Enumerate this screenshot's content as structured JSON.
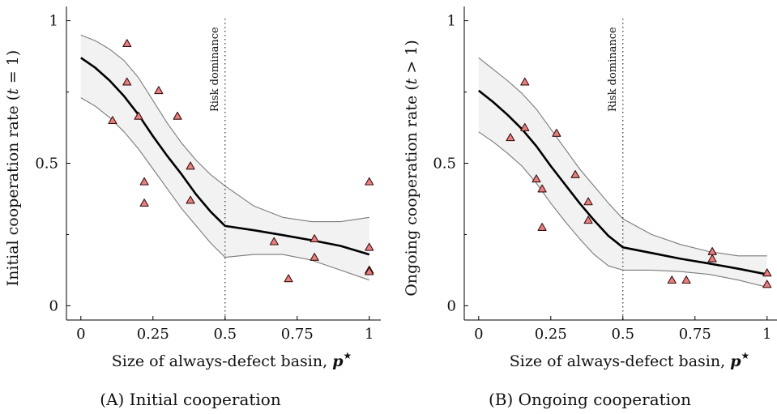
{
  "chart_data": [
    {
      "type": "scatter",
      "caption": "(A) Initial cooperation",
      "xlabel_text": "Size of always-defect basin, ",
      "xlabel_symbol": "p",
      "xlabel_star": "★",
      "ylabel_text": "Initial cooperation rate (",
      "ylabel_var": "t",
      "ylabel_cond": " = 1)",
      "xlim": [
        -0.05,
        1.04
      ],
      "ylim": [
        -0.05,
        1.05
      ],
      "x_ticks": [
        0,
        0.25,
        0.5,
        0.75,
        1
      ],
      "x_tick_labels": [
        "0",
        "0.25",
        "0.5",
        "0.75",
        "1"
      ],
      "y_ticks": [
        0,
        0.5,
        1
      ],
      "y_tick_labels": [
        "0",
        "0.5",
        "1"
      ],
      "y_minor_ticks": [
        0.25,
        0.75
      ],
      "annotation": {
        "x": 0.5,
        "label": "Risk dominance"
      },
      "fit": {
        "x": [
          0,
          0.05,
          0.1,
          0.15,
          0.2,
          0.25,
          0.3,
          0.35,
          0.4,
          0.45,
          0.5,
          0.6,
          0.7,
          0.8,
          0.9,
          1.0
        ],
        "y": [
          0.87,
          0.835,
          0.79,
          0.735,
          0.67,
          0.595,
          0.525,
          0.46,
          0.39,
          0.33,
          0.28,
          0.265,
          0.248,
          0.23,
          0.21,
          0.18
        ],
        "lo": [
          0.73,
          0.7,
          0.66,
          0.61,
          0.55,
          0.48,
          0.41,
          0.34,
          0.28,
          0.22,
          0.17,
          0.18,
          0.18,
          0.16,
          0.125,
          0.09
        ],
        "hi": [
          0.95,
          0.93,
          0.9,
          0.86,
          0.8,
          0.72,
          0.64,
          0.57,
          0.51,
          0.46,
          0.42,
          0.35,
          0.31,
          0.295,
          0.295,
          0.31
        ]
      },
      "points": [
        {
          "x": 0.11,
          "y": 0.65
        },
        {
          "x": 0.16,
          "y": 0.92
        },
        {
          "x": 0.16,
          "y": 0.785
        },
        {
          "x": 0.2,
          "y": 0.665
        },
        {
          "x": 0.22,
          "y": 0.435
        },
        {
          "x": 0.22,
          "y": 0.36
        },
        {
          "x": 0.27,
          "y": 0.755
        },
        {
          "x": 0.335,
          "y": 0.665
        },
        {
          "x": 0.38,
          "y": 0.49
        },
        {
          "x": 0.38,
          "y": 0.37
        },
        {
          "x": 0.67,
          "y": 0.225
        },
        {
          "x": 0.72,
          "y": 0.095
        },
        {
          "x": 0.81,
          "y": 0.235
        },
        {
          "x": 0.81,
          "y": 0.17
        },
        {
          "x": 1.0,
          "y": 0.435
        },
        {
          "x": 1.0,
          "y": 0.205
        },
        {
          "x": 1.0,
          "y": 0.125
        },
        {
          "x": 1.0,
          "y": 0.12
        }
      ]
    },
    {
      "type": "scatter",
      "caption": "(B) Ongoing cooperation",
      "xlabel_text": "Size of always-defect basin, ",
      "xlabel_symbol": "p",
      "xlabel_star": "★",
      "ylabel_text": "Ongoing cooperation rate (",
      "ylabel_var": "t",
      "ylabel_cond": " > 1)",
      "xlim": [
        -0.05,
        1.04
      ],
      "ylim": [
        -0.05,
        1.05
      ],
      "x_ticks": [
        0,
        0.25,
        0.5,
        0.75,
        1
      ],
      "x_tick_labels": [
        "0",
        "0.25",
        "0.5",
        "0.75",
        "1"
      ],
      "y_ticks": [
        0,
        0.5,
        1
      ],
      "y_tick_labels": [
        "0",
        "0.5",
        "1"
      ],
      "y_minor_ticks": [
        0.25,
        0.75
      ],
      "annotation": {
        "x": 0.5,
        "label": "Risk dominance"
      },
      "fit": {
        "x": [
          0,
          0.05,
          0.1,
          0.15,
          0.2,
          0.25,
          0.3,
          0.35,
          0.4,
          0.45,
          0.5,
          0.6,
          0.7,
          0.8,
          0.9,
          1.0
        ],
        "y": [
          0.755,
          0.715,
          0.67,
          0.62,
          0.56,
          0.49,
          0.425,
          0.36,
          0.3,
          0.245,
          0.205,
          0.185,
          0.165,
          0.148,
          0.13,
          0.11
        ],
        "lo": [
          0.61,
          0.575,
          0.535,
          0.49,
          0.43,
          0.36,
          0.295,
          0.235,
          0.18,
          0.14,
          0.125,
          0.125,
          0.12,
          0.11,
          0.09,
          0.065
        ],
        "hi": [
          0.87,
          0.83,
          0.79,
          0.745,
          0.69,
          0.62,
          0.55,
          0.48,
          0.42,
          0.36,
          0.305,
          0.25,
          0.215,
          0.19,
          0.175,
          0.175
        ]
      },
      "points": [
        {
          "x": 0.11,
          "y": 0.59
        },
        {
          "x": 0.16,
          "y": 0.785
        },
        {
          "x": 0.16,
          "y": 0.625
        },
        {
          "x": 0.2,
          "y": 0.445
        },
        {
          "x": 0.22,
          "y": 0.41
        },
        {
          "x": 0.22,
          "y": 0.275
        },
        {
          "x": 0.27,
          "y": 0.605
        },
        {
          "x": 0.335,
          "y": 0.46
        },
        {
          "x": 0.38,
          "y": 0.365
        },
        {
          "x": 0.38,
          "y": 0.3
        },
        {
          "x": 0.67,
          "y": 0.09
        },
        {
          "x": 0.72,
          "y": 0.09
        },
        {
          "x": 0.81,
          "y": 0.19
        },
        {
          "x": 0.81,
          "y": 0.165
        },
        {
          "x": 1.0,
          "y": 0.115
        },
        {
          "x": 1.0,
          "y": 0.075
        }
      ]
    }
  ],
  "colors": {
    "marker_fill": "#e88080",
    "marker_stroke": "#3a1010",
    "band_fill": "#f2f2f2",
    "band_stroke": "#7a7a7a",
    "fit_line": "#000000"
  }
}
